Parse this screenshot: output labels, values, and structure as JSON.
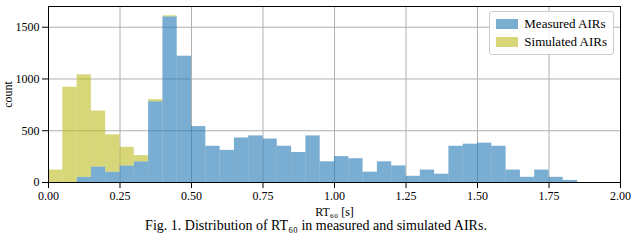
{
  "chart_data": {
    "type": "histogram",
    "caption": "Fig. 1. Distribution of RT₆₀ in measured and simulated AIRs.",
    "x_label": "RT₆₀ [s]",
    "y_label": "count",
    "bins": [
      0.0,
      0.05,
      0.1,
      0.15,
      0.2,
      0.25,
      0.3,
      0.35,
      0.4,
      0.45,
      0.5,
      0.55,
      0.6,
      0.65,
      0.7,
      0.75,
      0.8,
      0.85,
      0.9,
      0.95,
      1.0,
      1.05,
      1.1,
      1.15,
      1.2,
      1.25,
      1.3,
      1.35,
      1.4,
      1.45,
      1.5,
      1.55,
      1.6,
      1.65,
      1.7,
      1.75,
      1.8,
      1.85
    ],
    "series": [
      {
        "name": "Measured AIRs",
        "color": "#1f77b4",
        "values": [
          0,
          0,
          50,
          150,
          100,
          160,
          200,
          780,
          1600,
          1220,
          540,
          350,
          310,
          430,
          450,
          420,
          350,
          290,
          450,
          200,
          250,
          230,
          100,
          200,
          160,
          60,
          120,
          80,
          350,
          370,
          380,
          350,
          120,
          50,
          120,
          50,
          20
        ]
      },
      {
        "name": "Simulated AIRs",
        "color": "#bcbd22",
        "values": [
          120,
          920,
          990,
          540,
          360,
          180,
          60,
          20,
          10,
          0,
          0,
          0,
          0,
          0,
          0,
          0,
          0,
          0,
          0,
          0,
          0,
          0,
          0,
          0,
          0,
          0,
          0,
          0,
          0,
          0,
          0,
          0,
          0,
          0,
          0,
          0,
          0
        ]
      }
    ],
    "xlim": [
      0,
      2
    ],
    "xticks": [
      {
        "value": 0,
        "label": "0.00"
      },
      {
        "value": 0.25,
        "label": "0.25"
      },
      {
        "value": 0.5,
        "label": "0.50"
      },
      {
        "value": 0.75,
        "label": "0.75"
      },
      {
        "value": 1,
        "label": "1.00"
      },
      {
        "value": 1.25,
        "label": "1.25"
      },
      {
        "value": 1.5,
        "label": "1.50"
      },
      {
        "value": 1.75,
        "label": "1.75"
      },
      {
        "value": 2,
        "label": "2.00"
      }
    ],
    "ylim": [
      0,
      1700
    ],
    "yticks": [
      0,
      500,
      1000,
      1500
    ],
    "grid": true,
    "legend": "upper right"
  }
}
